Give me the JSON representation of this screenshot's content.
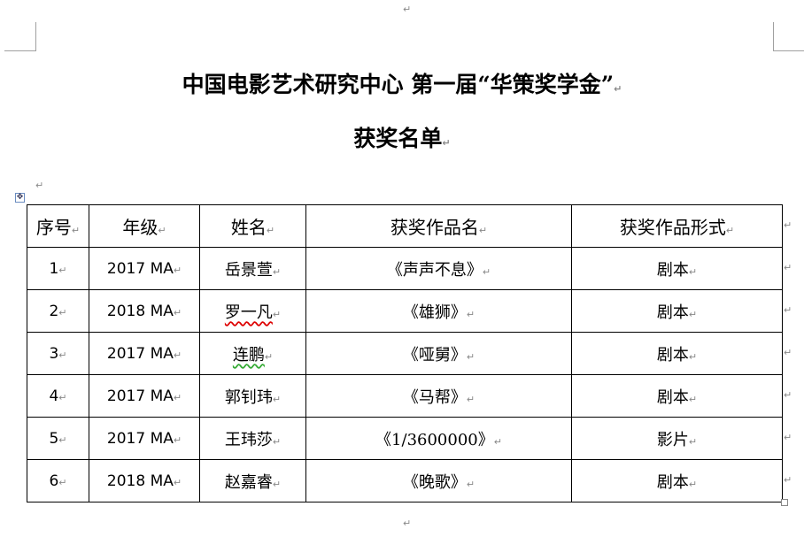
{
  "title": "中国电影艺术研究中心  第一届“华策奖学金”",
  "subtitle": "获奖名单",
  "paragraph_mark": "↵",
  "table": {
    "headers": [
      "序号",
      "年级",
      "姓名",
      "获奖作品名",
      "获奖作品形式"
    ],
    "rows": [
      [
        "1",
        "2017 MA",
        "岳景萱",
        "《声声不息》",
        "剧本"
      ],
      [
        "2",
        "2018 MA",
        "罗一凡",
        "《雄狮》",
        "剧本"
      ],
      [
        "3",
        "2017 MA",
        "连鹏",
        "《哑舅》",
        "剧本"
      ],
      [
        "4",
        "2017 MA",
        "郭钊玮",
        "《马帮》",
        "剧本"
      ],
      [
        "5",
        "2017 MA",
        "王玮莎",
        "《1/3600000》",
        "影片"
      ],
      [
        "6",
        "2018 MA",
        "赵嘉睿",
        "《晚歌》",
        "剧本"
      ]
    ]
  }
}
